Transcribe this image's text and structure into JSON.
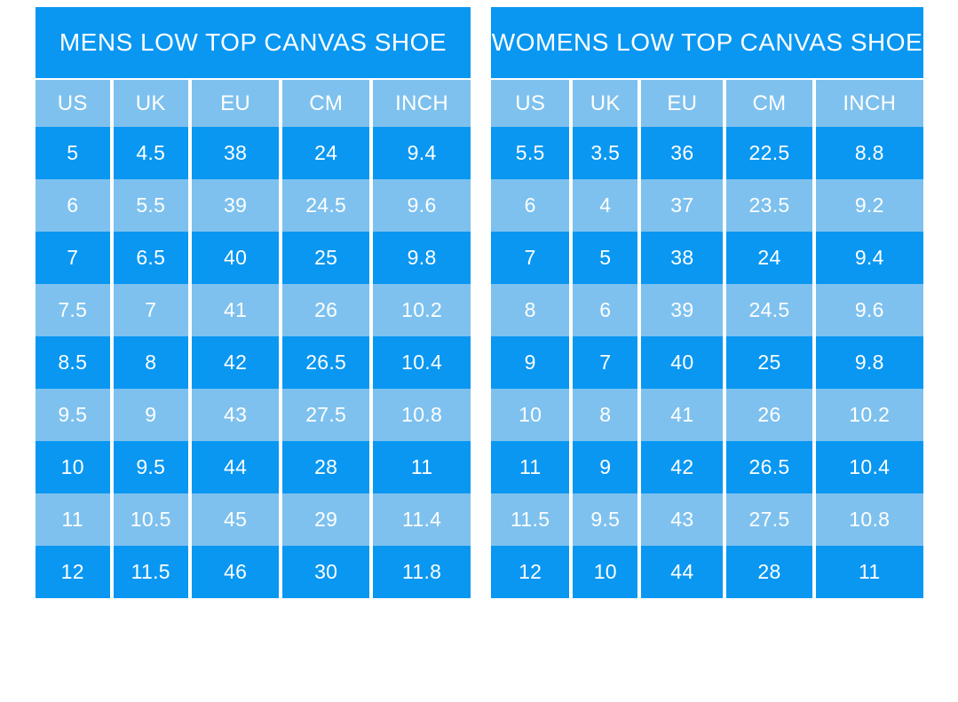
{
  "colors": {
    "primary_blue": "#0997F2",
    "light_blue": "#7EC1EE",
    "text": "#FFFFFF",
    "background": "#FFFFFF"
  },
  "chart_data": [
    {
      "type": "table",
      "title": "MENS LOW TOP CANVAS SHOE",
      "columns": [
        "US",
        "UK",
        "EU",
        "CM",
        "INCH"
      ],
      "rows": [
        [
          "5",
          "4.5",
          "38",
          "24",
          "9.4"
        ],
        [
          "6",
          "5.5",
          "39",
          "24.5",
          "9.6"
        ],
        [
          "7",
          "6.5",
          "40",
          "25",
          "9.8"
        ],
        [
          "7.5",
          "7",
          "41",
          "26",
          "10.2"
        ],
        [
          "8.5",
          "8",
          "42",
          "26.5",
          "10.4"
        ],
        [
          "9.5",
          "9",
          "43",
          "27.5",
          "10.8"
        ],
        [
          "10",
          "9.5",
          "44",
          "28",
          "11"
        ],
        [
          "11",
          "10.5",
          "45",
          "29",
          "11.4"
        ],
        [
          "12",
          "11.5",
          "46",
          "30",
          "11.8"
        ]
      ]
    },
    {
      "type": "table",
      "title": "WOMENS LOW TOP CANVAS SHOE",
      "columns": [
        "US",
        "UK",
        "EU",
        "CM",
        "INCH"
      ],
      "rows": [
        [
          "5.5",
          "3.5",
          "36",
          "22.5",
          "8.8"
        ],
        [
          "6",
          "4",
          "37",
          "23.5",
          "9.2"
        ],
        [
          "7",
          "5",
          "38",
          "24",
          "9.4"
        ],
        [
          "8",
          "6",
          "39",
          "24.5",
          "9.6"
        ],
        [
          "9",
          "7",
          "40",
          "25",
          "9.8"
        ],
        [
          "10",
          "8",
          "41",
          "26",
          "10.2"
        ],
        [
          "11",
          "9",
          "42",
          "26.5",
          "10.4"
        ],
        [
          "11.5",
          "9.5",
          "43",
          "27.5",
          "10.8"
        ],
        [
          "12",
          "10",
          "44",
          "28",
          "11"
        ]
      ]
    }
  ]
}
